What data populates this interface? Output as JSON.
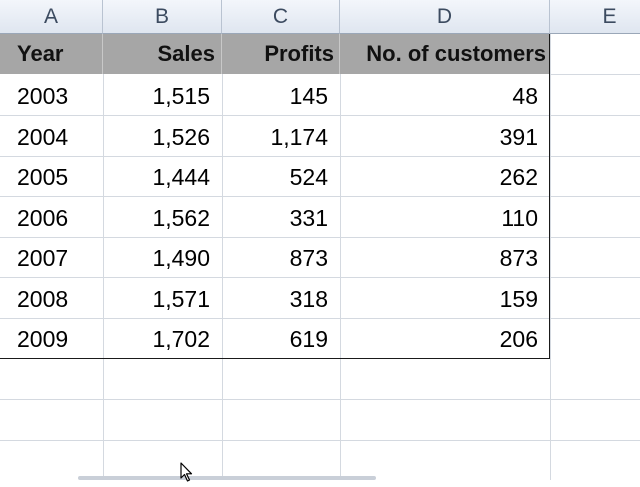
{
  "spreadsheet": {
    "column_headers": [
      "A",
      "B",
      "C",
      "D",
      "E"
    ],
    "table": {
      "headers": [
        "Year",
        "Sales",
        "Profits",
        "No. of customers"
      ],
      "rows": [
        [
          "2003",
          "1,515",
          "145",
          "48"
        ],
        [
          "2004",
          "1,526",
          "1,174",
          "391"
        ],
        [
          "2005",
          "1,444",
          "524",
          "262"
        ],
        [
          "2006",
          "1,562",
          "331",
          "110"
        ],
        [
          "2007",
          "1,490",
          "873",
          "873"
        ],
        [
          "2008",
          "1,571",
          "318",
          "159"
        ],
        [
          "2009",
          "1,702",
          "619",
          "206"
        ]
      ]
    }
  },
  "colors": {
    "table_header_fill": "#a6a6a6",
    "column_header_fill": "#dfe6f0",
    "gridline": "#d4d9e0"
  },
  "icons": {
    "cursor": "mouse-pointer-icon"
  }
}
